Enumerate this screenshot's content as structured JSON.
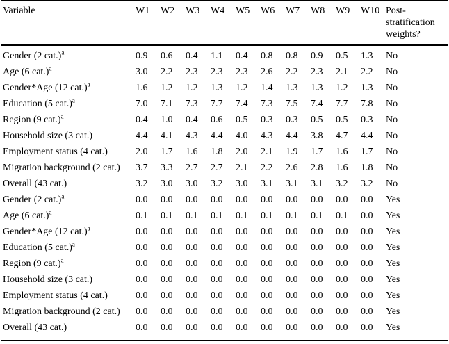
{
  "table": {
    "header": {
      "variable_label": "Variable",
      "wave_columns": [
        "W1",
        "W2",
        "W3",
        "W4",
        "W5",
        "W6",
        "W7",
        "W8",
        "W9",
        "W10"
      ],
      "poststrat_label": "Post-stratification weights?"
    },
    "rows": [
      {
        "label": "Gender (2 cat.)",
        "sup": "a",
        "values": [
          "0.9",
          "0.6",
          "0.4",
          "1.1",
          "0.4",
          "0.8",
          "0.8",
          "0.9",
          "0.5",
          "1.3"
        ],
        "poststrat": "No"
      },
      {
        "label": "Age (6 cat.)",
        "sup": "a",
        "values": [
          "3.0",
          "2.2",
          "2.3",
          "2.3",
          "2.3",
          "2.6",
          "2.2",
          "2.3",
          "2.1",
          "2.2"
        ],
        "poststrat": "No"
      },
      {
        "label": "Gender*Age (12 cat.)",
        "sup": "a",
        "values": [
          "1.6",
          "1.2",
          "1.2",
          "1.3",
          "1.2",
          "1.4",
          "1.3",
          "1.3",
          "1.2",
          "1.3"
        ],
        "poststrat": "No"
      },
      {
        "label": "Education (5 cat.)",
        "sup": "a",
        "values": [
          "7.0",
          "7.1",
          "7.3",
          "7.7",
          "7.4",
          "7.3",
          "7.5",
          "7.4",
          "7.7",
          "7.8"
        ],
        "poststrat": "No"
      },
      {
        "label": "Region (9 cat.)",
        "sup": "a",
        "values": [
          "0.4",
          "1.0",
          "0.4",
          "0.6",
          "0.5",
          "0.3",
          "0.3",
          "0.5",
          "0.5",
          "0.3"
        ],
        "poststrat": "No"
      },
      {
        "label": "Household size (3 cat.)",
        "sup": "",
        "values": [
          "4.4",
          "4.1",
          "4.3",
          "4.4",
          "4.0",
          "4.3",
          "4.4",
          "3.8",
          "4.7",
          "4.4"
        ],
        "poststrat": "No"
      },
      {
        "label": "Employment status (4 cat.)",
        "sup": "",
        "values": [
          "2.0",
          "1.7",
          "1.6",
          "1.8",
          "2.0",
          "2.1",
          "1.9",
          "1.7",
          "1.6",
          "1.7"
        ],
        "poststrat": "No"
      },
      {
        "label": "Migration background (2 cat.)",
        "sup": "",
        "values": [
          "3.7",
          "3.3",
          "2.7",
          "2.7",
          "2.1",
          "2.2",
          "2.6",
          "2.8",
          "1.6",
          "1.8"
        ],
        "poststrat": "No"
      },
      {
        "label": "Overall (43 cat.)",
        "sup": "",
        "values": [
          "3.2",
          "3.0",
          "3.0",
          "3.2",
          "3.0",
          "3.1",
          "3.1",
          "3.1",
          "3.2",
          "3.2"
        ],
        "poststrat": "No"
      },
      {
        "label": "Gender (2 cat.)",
        "sup": "a",
        "values": [
          "0.0",
          "0.0",
          "0.0",
          "0.0",
          "0.0",
          "0.0",
          "0.0",
          "0.0",
          "0.0",
          "0.0"
        ],
        "poststrat": "Yes"
      },
      {
        "label": "Age (6 cat.)",
        "sup": "a",
        "values": [
          "0.1",
          "0.1",
          "0.1",
          "0.1",
          "0.1",
          "0.1",
          "0.1",
          "0.1",
          "0.1",
          "0.0"
        ],
        "poststrat": "Yes"
      },
      {
        "label": "Gender*Age (12 cat.)",
        "sup": "a",
        "values": [
          "0.0",
          "0.0",
          "0.0",
          "0.0",
          "0.0",
          "0.0",
          "0.0",
          "0.0",
          "0.0",
          "0.0"
        ],
        "poststrat": "Yes"
      },
      {
        "label": "Education (5 cat.)",
        "sup": "a",
        "values": [
          "0.0",
          "0.0",
          "0.0",
          "0.0",
          "0.0",
          "0.0",
          "0.0",
          "0.0",
          "0.0",
          "0.0"
        ],
        "poststrat": "Yes"
      },
      {
        "label": "Region (9 cat.)",
        "sup": "a",
        "values": [
          "0.0",
          "0.0",
          "0.0",
          "0.0",
          "0.0",
          "0.0",
          "0.0",
          "0.0",
          "0.0",
          "0.0"
        ],
        "poststrat": "Yes"
      },
      {
        "label": "Household size (3 cat.)",
        "sup": "",
        "values": [
          "0.0",
          "0.0",
          "0.0",
          "0.0",
          "0.0",
          "0.0",
          "0.0",
          "0.0",
          "0.0",
          "0.0"
        ],
        "poststrat": "Yes"
      },
      {
        "label": "Employment status (4 cat.)",
        "sup": "",
        "values": [
          "0.0",
          "0.0",
          "0.0",
          "0.0",
          "0.0",
          "0.0",
          "0.0",
          "0.0",
          "0.0",
          "0.0"
        ],
        "poststrat": "Yes"
      },
      {
        "label": "Migration background (2 cat.)",
        "sup": "",
        "values": [
          "0.0",
          "0.0",
          "0.0",
          "0.0",
          "0.0",
          "0.0",
          "0.0",
          "0.0",
          "0.0",
          "0.0"
        ],
        "poststrat": "Yes"
      },
      {
        "label": "Overall (43 cat.)",
        "sup": "",
        "values": [
          "0.0",
          "0.0",
          "0.0",
          "0.0",
          "0.0",
          "0.0",
          "0.0",
          "0.0",
          "0.0",
          "0.0"
        ],
        "poststrat": "Yes"
      }
    ],
    "colors": {
      "text": "#000000",
      "rule": "#000000",
      "background": "#ffffff"
    }
  }
}
